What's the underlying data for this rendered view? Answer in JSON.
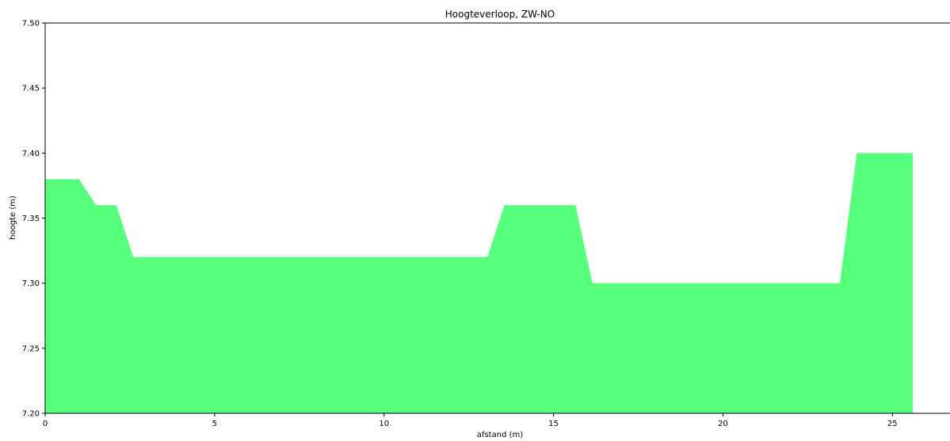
{
  "chart_data": {
    "type": "area",
    "title": "Hoogteverloop, ZW-NO",
    "xlabel": "afstand (m)",
    "ylabel": "hoogte (m)",
    "xlim": [
      0,
      26.7
    ],
    "ylim": [
      7.2,
      7.5
    ],
    "xticks": [
      "0",
      "5",
      "10",
      "15",
      "20",
      "25"
    ],
    "yticks": [
      "7.20",
      "7.25",
      "7.30",
      "7.35",
      "7.40",
      "7.45",
      "7.50"
    ],
    "grid": false,
    "legend": false,
    "fill_color": "#57ff7d",
    "series": [
      {
        "x": [
          0,
          1.0,
          1.5,
          2.1,
          2.6,
          13.05,
          13.55,
          15.65,
          16.15,
          23.45,
          23.95,
          25.6
        ],
        "y": [
          7.38,
          7.38,
          7.36,
          7.36,
          7.32,
          7.32,
          7.36,
          7.36,
          7.3,
          7.3,
          7.4,
          7.4
        ]
      }
    ]
  }
}
